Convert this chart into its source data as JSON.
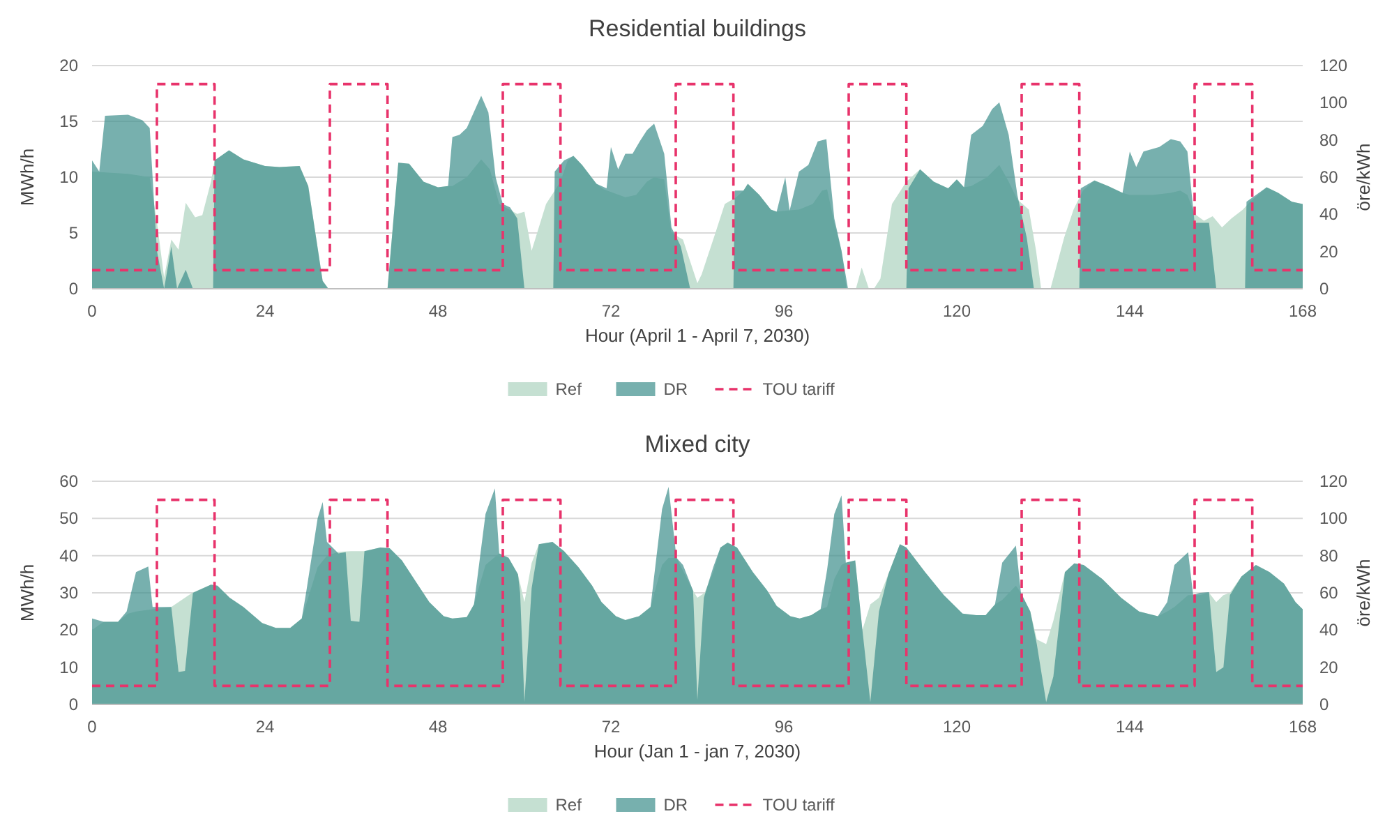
{
  "chart_data": [
    {
      "type": "area",
      "title": "Residential buildings",
      "xlabel": "Hour (April 1 - April 7, 2030)",
      "ylabel": "MWh/h",
      "y2label": "öre/kWh",
      "xlim": [
        0,
        168
      ],
      "xticks": [
        0,
        24,
        48,
        72,
        96,
        120,
        144,
        168
      ],
      "ylim": [
        0,
        20
      ],
      "yticks": [
        0,
        5,
        10,
        15,
        20
      ],
      "y2lim": [
        0,
        120
      ],
      "y2ticks": [
        0,
        20,
        40,
        60,
        80,
        100,
        120
      ],
      "grid": "y",
      "legend": "bottom",
      "series": [
        {
          "name": "Ref",
          "color": "#c5e0d2",
          "x": [
            0,
            5,
            8,
            9,
            10,
            11,
            12,
            13,
            14.3,
            15.3,
            16.5,
            17,
            19,
            21,
            24,
            26,
            28.8,
            30,
            32,
            32.8,
            41,
            42.5,
            44,
            46,
            48,
            49.4,
            50,
            52,
            54,
            55.2,
            56.5,
            59,
            60,
            61,
            63,
            65,
            66,
            66.8,
            68,
            70,
            71,
            74,
            75.5,
            77,
            78,
            79.4,
            80.4,
            82,
            84,
            84.6,
            86.5,
            87.8,
            89.4,
            90.4,
            91,
            92.6,
            94.2,
            95,
            96.2,
            98.1,
            100,
            101.3,
            102,
            103,
            104,
            104.7,
            106,
            106.8,
            107.8,
            108.5,
            109.4,
            111,
            113,
            114.9,
            116.8,
            118.8,
            120,
            121,
            122,
            124.2,
            125.9,
            127.2,
            128.4,
            130,
            131,
            131.7,
            133,
            134.9,
            136.2,
            137.5,
            139.1,
            141,
            143,
            144,
            147.2,
            149.7,
            151,
            152,
            153,
            154.3,
            155.5,
            156.8,
            158.1,
            159.7,
            160.7,
            163,
            164.6,
            166.5,
            168
          ],
          "values": [
            10.5,
            10.3,
            10,
            6,
            1,
            4.4,
            3.5,
            7.7,
            6.4,
            6.6,
            9.6,
            11.5,
            12.4,
            11.6,
            11,
            10.9,
            11,
            9.2,
            0.7,
            0,
            0,
            11.3,
            11.2,
            9.6,
            9.1,
            9.2,
            9.2,
            10,
            11.6,
            10.7,
            7.6,
            6.7,
            6.9,
            3.4,
            7.6,
            9.6,
            11.5,
            11.9,
            11.1,
            9.4,
            8.9,
            8.2,
            8.4,
            9.6,
            10,
            9.8,
            5,
            4.4,
            0.5,
            1.3,
            5,
            7.6,
            8.2,
            8.8,
            9.4,
            8.4,
            7.1,
            6.9,
            7,
            7.1,
            7.6,
            8.8,
            8.9,
            5.9,
            3.4,
            0,
            0,
            1.9,
            0,
            0,
            0.9,
            7.6,
            9.6,
            10.7,
            9.6,
            9,
            9.8,
            9.1,
            9.2,
            10,
            11.1,
            9.6,
            8,
            7.1,
            3.4,
            0,
            0,
            4.6,
            7.1,
            8.8,
            9.7,
            9.2,
            8.6,
            8.4,
            8.4,
            8.6,
            8.8,
            8.4,
            6.7,
            6.1,
            6.5,
            5.5,
            6.3,
            7.1,
            7.8,
            9.1,
            8.6,
            7.8,
            7.6
          ]
        },
        {
          "name": "DR",
          "color": "#3d8f8c",
          "x": [
            0,
            1,
            1.8,
            5,
            7,
            8,
            9,
            10,
            11,
            11.8,
            13,
            14,
            16.8,
            17,
            19,
            21,
            24,
            26,
            28.8,
            30,
            32,
            32.8,
            41,
            42.5,
            44,
            46,
            48,
            49.4,
            50,
            51,
            52,
            54,
            55,
            56,
            57,
            58,
            59,
            60,
            64,
            64.2,
            65.5,
            66.8,
            68,
            70,
            71.4,
            72,
            73,
            74,
            75,
            76,
            77,
            78,
            79.4,
            80.4,
            81.7,
            83,
            89,
            89.2,
            90.4,
            91,
            92.6,
            94.2,
            95,
            96.2,
            96.8,
            98.1,
            99.4,
            100.7,
            101.9,
            103,
            104,
            104.9,
            113,
            113.3,
            114.9,
            116.8,
            118.8,
            120,
            121,
            122,
            123.6,
            124.9,
            125.9,
            127.2,
            128.4,
            129.7,
            130.7,
            137,
            137.2,
            139.1,
            141,
            143,
            144,
            144.9,
            145.9,
            148.1,
            149.7,
            151,
            152,
            153,
            155,
            156,
            160,
            160.2,
            163,
            164.6,
            166.5,
            168
          ],
          "values": [
            11.5,
            10.5,
            15.5,
            15.6,
            15.1,
            14.4,
            3.4,
            0,
            3.8,
            0,
            1.7,
            0,
            0,
            11.5,
            12.4,
            11.6,
            11,
            10.9,
            11,
            9.2,
            0.7,
            0,
            0,
            11.3,
            11.2,
            9.6,
            9.1,
            9.2,
            13.6,
            13.8,
            14.4,
            17.3,
            15.8,
            10,
            7.6,
            7.3,
            6.3,
            0,
            0,
            10.5,
            11.5,
            11.9,
            11.1,
            9.4,
            9,
            12.7,
            10.7,
            12.1,
            12.1,
            13.2,
            14.2,
            14.8,
            12.1,
            5.5,
            3.8,
            0,
            0,
            8.8,
            8.8,
            9.4,
            8.4,
            7.1,
            6.9,
            10,
            7,
            10.5,
            11.1,
            13.2,
            13.4,
            6.3,
            3.4,
            0,
            0,
            9,
            10.7,
            9.6,
            9,
            9.8,
            9.1,
            13.8,
            14.6,
            16.1,
            16.7,
            13.8,
            8.4,
            4.6,
            0,
            0,
            9,
            9.7,
            9.2,
            8.6,
            12.3,
            10.9,
            12.3,
            12.7,
            13.4,
            13.2,
            12.3,
            5.9,
            5.9,
            0,
            0,
            7.8,
            9.1,
            8.6,
            7.8,
            7.6
          ]
        },
        {
          "name": "TOU tariff",
          "type": "line",
          "axis": "y2",
          "line_style": "dashed",
          "color": "#e8336b",
          "x": [
            0,
            9,
            9,
            17,
            17,
            33,
            33,
            41,
            41,
            57,
            57,
            65,
            65,
            81,
            81,
            89,
            89,
            105,
            105,
            113,
            113,
            129,
            129,
            137,
            137,
            153,
            153,
            161,
            161,
            168
          ],
          "values": [
            10,
            10,
            110,
            110,
            10,
            10,
            110,
            110,
            10,
            10,
            110,
            110,
            10,
            10,
            110,
            110,
            10,
            10,
            110,
            110,
            10,
            10,
            110,
            110,
            10,
            10,
            110,
            110,
            10,
            10
          ]
        }
      ]
    },
    {
      "type": "area",
      "title": "Mixed city",
      "xlabel": "Hour (Jan 1 - jan 7, 2030)",
      "ylabel": "MWh/h",
      "y2label": "öre/kWh",
      "xlim": [
        0,
        168
      ],
      "xticks": [
        0,
        24,
        48,
        72,
        96,
        120,
        144,
        168
      ],
      "ylim": [
        0,
        60
      ],
      "yticks": [
        0,
        10,
        20,
        30,
        40,
        50,
        60
      ],
      "y2lim": [
        0,
        120
      ],
      "y2ticks": [
        0,
        20,
        40,
        60,
        80,
        100,
        120
      ],
      "grid": "y",
      "legend": "bottom",
      "series": [
        {
          "name": "Ref",
          "color": "#c5e0d2",
          "x": [
            0,
            1.6,
            3.6,
            5,
            6.1,
            8.4,
            11,
            12,
            13.9,
            16.5,
            17.4,
            19.1,
            21,
            23.6,
            25.5,
            27.5,
            29.1,
            31.3,
            32.6,
            34.2,
            35.9,
            37.1,
            37.8,
            40,
            41.3,
            43,
            44.9,
            46.8,
            48.8,
            50,
            52,
            53,
            54.6,
            56.5,
            57.8,
            59.1,
            60,
            61,
            62,
            63.9,
            65.5,
            67.5,
            69.4,
            70.7,
            72.7,
            74,
            75.9,
            77.5,
            79.1,
            80,
            81.1,
            83.4,
            84,
            85,
            86.2,
            87.2,
            88.2,
            89.5,
            91.7,
            93.7,
            95,
            96.9,
            98.2,
            99.8,
            101.1,
            102,
            103,
            104,
            104.6,
            105.9,
            106.9,
            108,
            109.2,
            110.5,
            112.1,
            113,
            115.6,
            118.2,
            120.8,
            122.7,
            124,
            125.3,
            126.3,
            128.2,
            128.9,
            130.2,
            131.1,
            132.4,
            133.4,
            135,
            136.3,
            137.6,
            140.2,
            142.8,
            145.3,
            147.9,
            149.2,
            150.2,
            152.1,
            152.8,
            153.7,
            155,
            156,
            157,
            157.9,
            159.5,
            161.5,
            163.4,
            165.4,
            167,
            168
          ],
          "values": [
            20,
            22.2,
            22.2,
            24.4,
            25,
            25.6,
            26.2,
            27.5,
            30,
            32.2,
            31.9,
            28.7,
            26.2,
            21.9,
            20.6,
            20.6,
            23.1,
            36.9,
            40,
            41,
            41.2,
            41.2,
            41.2,
            42.2,
            42,
            38.7,
            33.1,
            27.5,
            23.7,
            23.1,
            23.5,
            26.9,
            37.5,
            40.6,
            39.4,
            35,
            27.5,
            38,
            43.1,
            43.7,
            41.2,
            36.9,
            31.9,
            27.5,
            23.7,
            22.7,
            23.7,
            26.2,
            37.5,
            39.4,
            39.4,
            30.6,
            28.7,
            30,
            35.6,
            42.2,
            43.5,
            42.2,
            35.6,
            30.6,
            26.5,
            23.7,
            23.1,
            24,
            25.6,
            26.2,
            33.7,
            37.5,
            38.1,
            38.7,
            20,
            26.9,
            28.7,
            35,
            43.1,
            42.2,
            35.6,
            29.4,
            24.4,
            24,
            24,
            26.9,
            28.1,
            31.9,
            30,
            25,
            17.5,
            16.2,
            22.5,
            35.6,
            37.9,
            37.5,
            33.7,
            28.7,
            25,
            23.7,
            25,
            26.2,
            29.4,
            29.4,
            29.4,
            30,
            27.5,
            29.4,
            30,
            34.4,
            37.5,
            35.6,
            32.5,
            27.5,
            25.6
          ]
        },
        {
          "name": "DR",
          "color": "#3d8f8c",
          "x": [
            0,
            1.6,
            3.6,
            4.8,
            6.1,
            7.8,
            8.4,
            11,
            12,
            12.9,
            14,
            16.5,
            17.4,
            19.1,
            21,
            23.6,
            25.5,
            27.5,
            29.1,
            29.7,
            31.3,
            32,
            32.6,
            34.2,
            35.2,
            35.9,
            37.1,
            37.8,
            40,
            41.3,
            43,
            44.9,
            46.8,
            48.8,
            50,
            52,
            53,
            54.6,
            55.9,
            56.5,
            57.8,
            59.1,
            59.4,
            60,
            61,
            62,
            63.9,
            65.5,
            67.5,
            69.4,
            70.7,
            72.7,
            74,
            75.9,
            77.5,
            79.1,
            80,
            81.1,
            82,
            83.4,
            84,
            84.9,
            86.2,
            87.2,
            88.2,
            89.5,
            91.7,
            93.7,
            95,
            96.9,
            98.2,
            99.8,
            101.1,
            102,
            103,
            104,
            104.6,
            105.9,
            106.9,
            108,
            109.2,
            110.5,
            112.1,
            113,
            115.6,
            118.2,
            120.8,
            122.7,
            124,
            125.3,
            126.3,
            128.2,
            128.9,
            130.2,
            131.1,
            132.4,
            133.4,
            135,
            136.3,
            137.6,
            140.2,
            142.8,
            145.3,
            147.9,
            149.2,
            150.2,
            152.1,
            152.8,
            153.7,
            155,
            156,
            157,
            157.9,
            159.5,
            161.5,
            163.4,
            165.4,
            167,
            168
          ],
          "values": [
            23.1,
            22.2,
            22.2,
            25,
            35.6,
            37.1,
            26.2,
            26.2,
            8.7,
            9,
            30,
            32.2,
            31.9,
            28.7,
            26.2,
            21.9,
            20.6,
            20.6,
            23.1,
            30,
            50,
            54.4,
            43.7,
            40.6,
            40.9,
            22.5,
            22.2,
            41.2,
            42.2,
            42,
            38.7,
            33.1,
            27.5,
            23.7,
            23.1,
            23.5,
            26.9,
            51.2,
            58.1,
            40.6,
            39.4,
            35,
            30,
            0.6,
            31.2,
            43.1,
            43.7,
            41.2,
            36.9,
            31.9,
            27.5,
            23.7,
            22.7,
            23.7,
            26.2,
            52.5,
            58.5,
            39.4,
            37.5,
            30.6,
            1.2,
            28.7,
            36.9,
            42.2,
            43.5,
            42.2,
            35.6,
            30.6,
            26.5,
            23.7,
            23.1,
            24,
            25.6,
            36.2,
            51.2,
            56.2,
            38.1,
            38.7,
            20,
            0.6,
            25,
            35,
            43.1,
            42.2,
            35.6,
            29.4,
            24.4,
            24,
            24,
            26.9,
            38.1,
            42.7,
            30,
            25,
            16.2,
            0.6,
            7.5,
            35.6,
            37.9,
            37.5,
            33.7,
            28.7,
            25,
            23.7,
            27.5,
            37.5,
            40.9,
            29.4,
            30,
            30.2,
            8.7,
            10,
            29.4,
            34.4,
            37.5,
            35.6,
            32.5,
            27.5,
            25.6
          ]
        },
        {
          "name": "TOU tariff",
          "type": "line",
          "axis": "y2",
          "line_style": "dashed",
          "color": "#e8336b",
          "x": [
            0,
            9,
            9,
            17,
            17,
            33,
            33,
            41,
            41,
            57,
            57,
            65,
            65,
            81,
            81,
            89,
            89,
            105,
            105,
            113,
            113,
            129,
            129,
            137,
            137,
            153,
            153,
            161,
            161,
            168
          ],
          "values": [
            10,
            10,
            110,
            110,
            10,
            10,
            110,
            110,
            10,
            10,
            110,
            110,
            10,
            10,
            110,
            110,
            10,
            10,
            110,
            110,
            10,
            10,
            110,
            110,
            10,
            10,
            110,
            110,
            10,
            10
          ]
        }
      ]
    }
  ]
}
